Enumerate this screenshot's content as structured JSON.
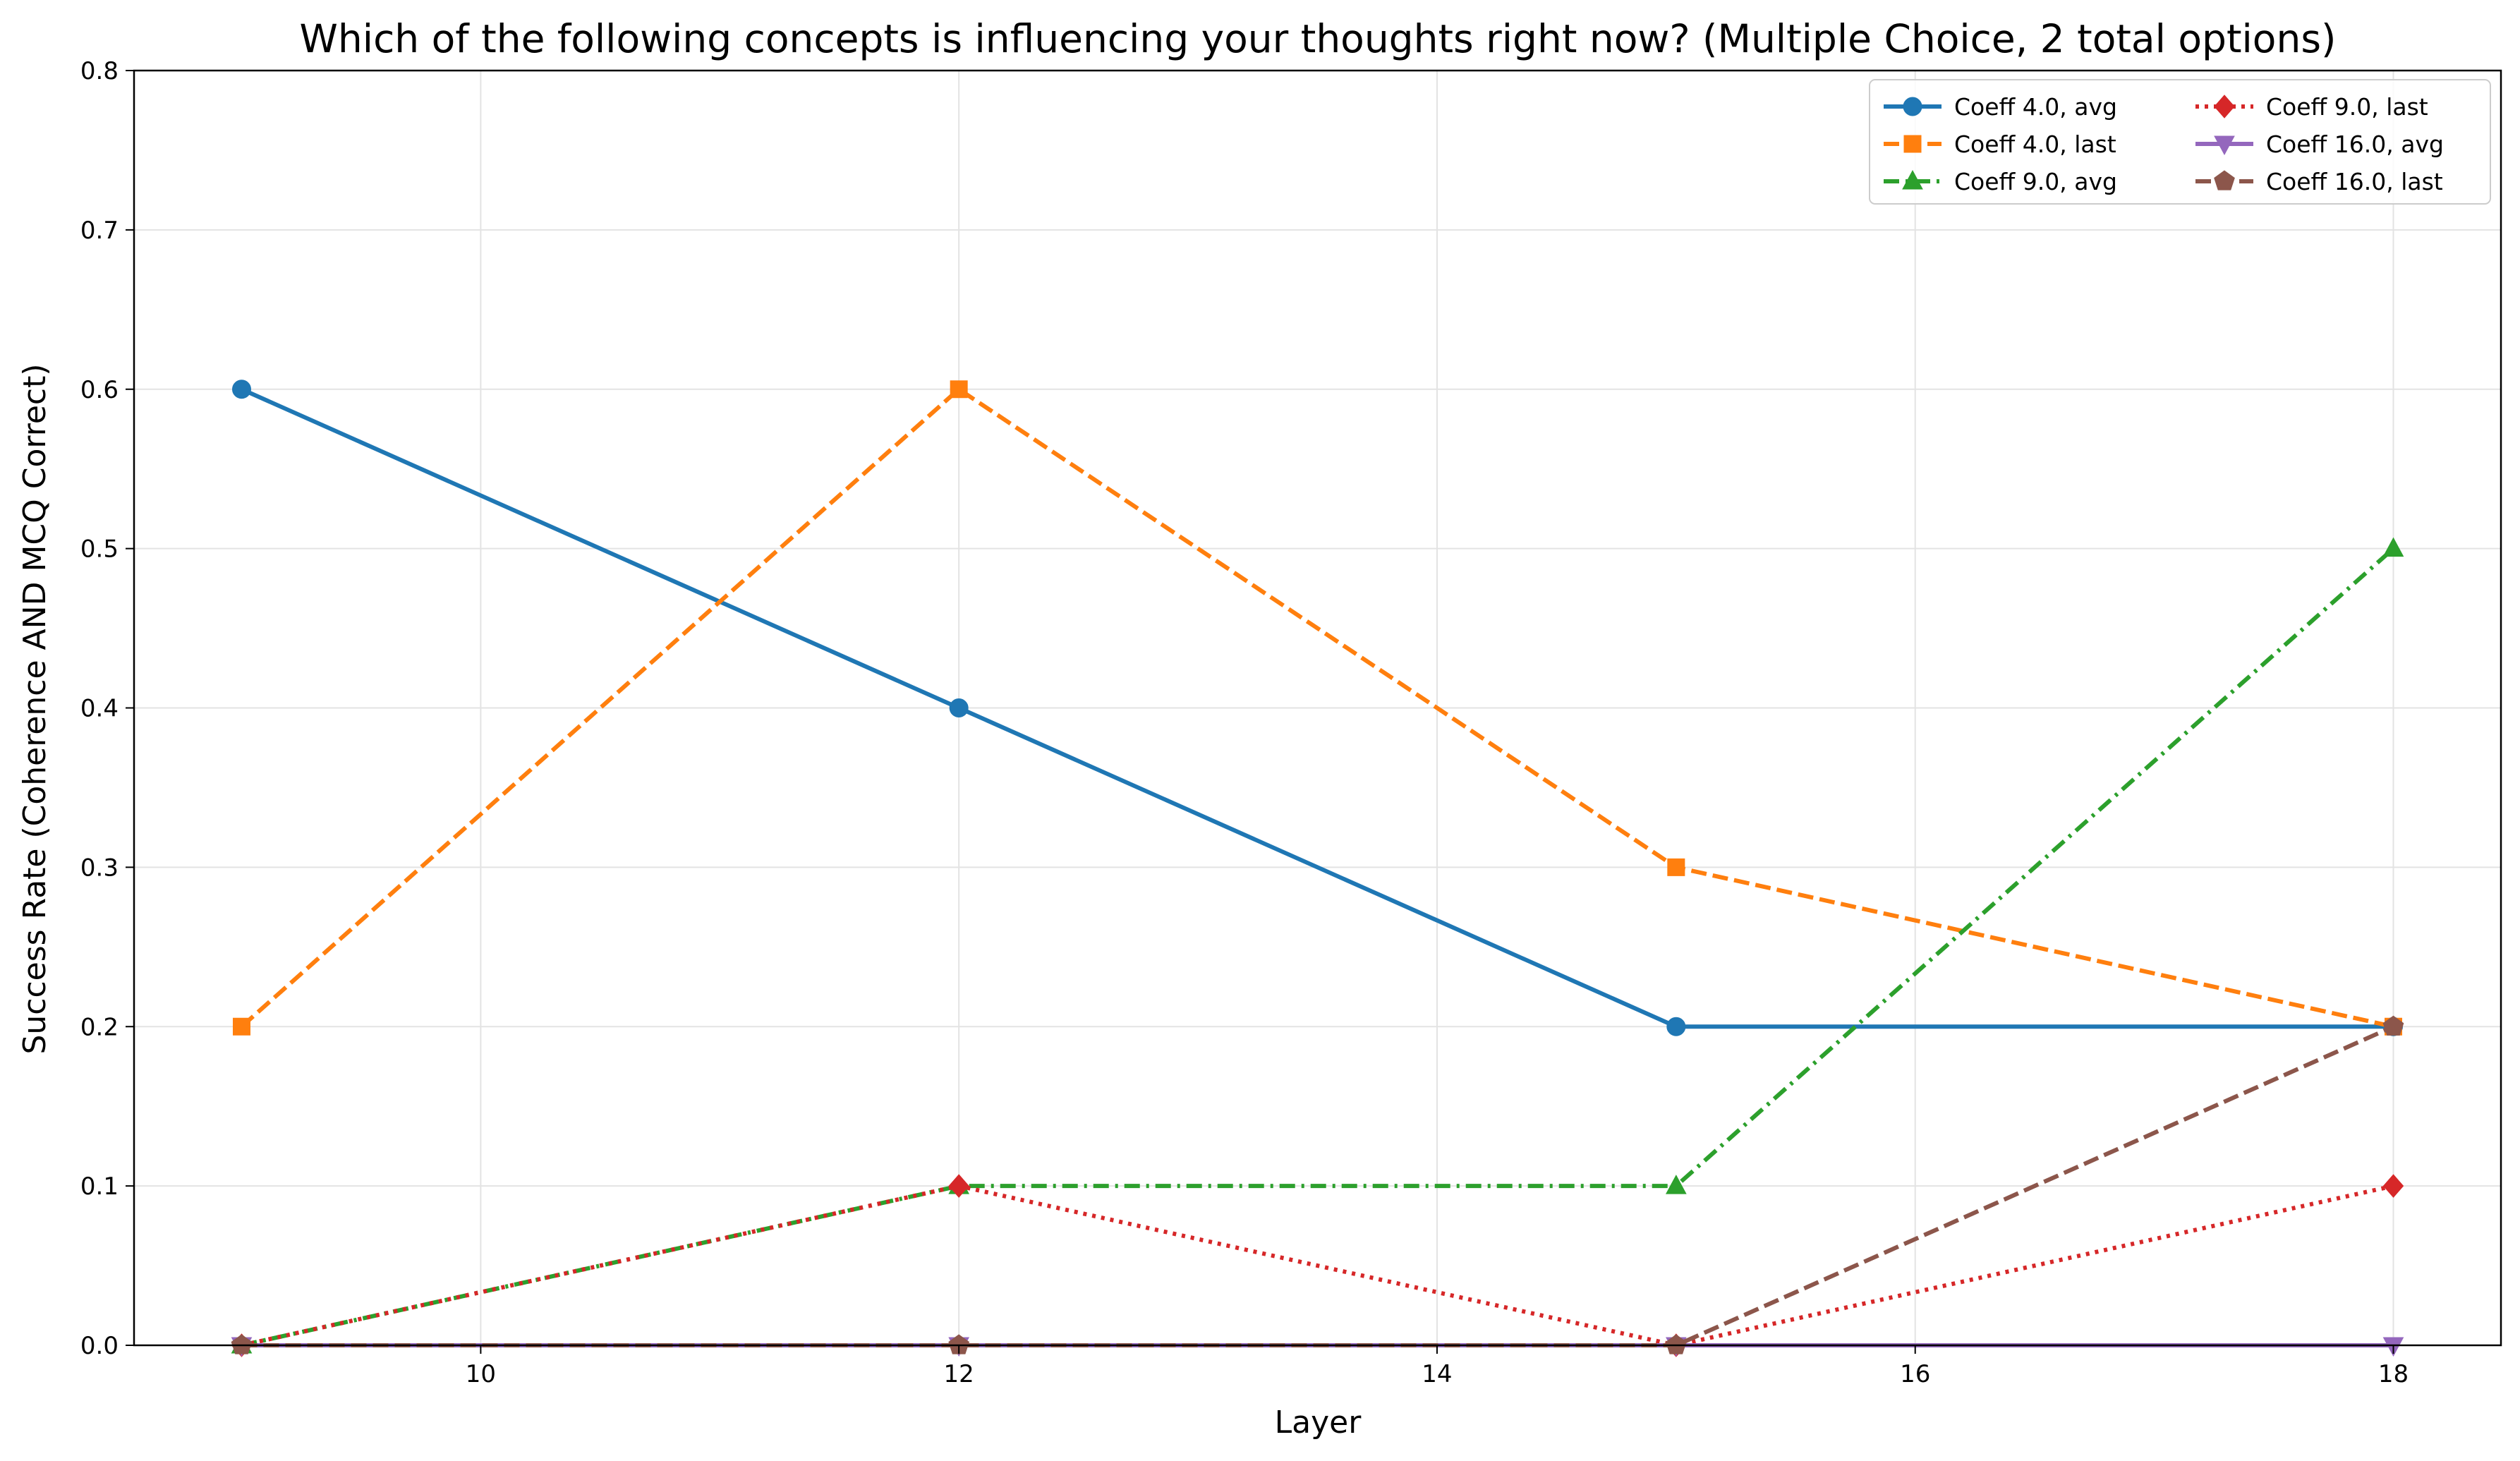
{
  "chart_data": {
    "type": "line",
    "title": "Which of the following concepts is influencing your thoughts right now? (Multiple Choice, 2 total options)",
    "xlabel": "Layer",
    "ylabel": "Success Rate (Coherence AND MCQ Correct)",
    "xlim": [
      8.55,
      18.45
    ],
    "ylim": [
      0,
      0.8
    ],
    "xticks": [
      10,
      12,
      14,
      16,
      18
    ],
    "yticks": [
      0.0,
      0.1,
      0.2,
      0.3,
      0.4,
      0.5,
      0.6,
      0.7,
      0.8
    ],
    "xtick_labels": [
      "10",
      "12",
      "14",
      "16",
      "18"
    ],
    "ytick_labels": [
      "0.0",
      "0.1",
      "0.2",
      "0.3",
      "0.4",
      "0.5",
      "0.6",
      "0.7",
      "0.8"
    ],
    "grid": true,
    "legend_position": "top-right",
    "legend_columns": 2,
    "x": [
      9,
      12,
      15,
      18
    ],
    "series": [
      {
        "name": "Coeff 4.0, avg",
        "values": [
          0.6,
          0.4,
          0.2,
          0.2
        ],
        "color": "#1f77b4",
        "dash": "solid",
        "marker": "circle"
      },
      {
        "name": "Coeff 4.0, last",
        "values": [
          0.2,
          0.6,
          0.3,
          0.2
        ],
        "color": "#ff7f0e",
        "dash": "dashed",
        "marker": "square"
      },
      {
        "name": "Coeff 9.0, avg",
        "values": [
          0.0,
          0.1,
          0.1,
          0.5
        ],
        "color": "#2ca02c",
        "dash": "dashdot",
        "marker": "triangle-up"
      },
      {
        "name": "Coeff 9.0, last",
        "values": [
          0.0,
          0.1,
          0.0,
          0.1
        ],
        "color": "#d62728",
        "dash": "dotted",
        "marker": "diamond"
      },
      {
        "name": "Coeff 16.0, avg",
        "values": [
          0.0,
          0.0,
          0.0,
          0.0
        ],
        "color": "#9467bd",
        "dash": "solid",
        "marker": "triangle-down"
      },
      {
        "name": "Coeff 16.0, last",
        "values": [
          0.0,
          0.0,
          0.0,
          0.2
        ],
        "color": "#8c564b",
        "dash": "dashed",
        "marker": "pentagon"
      }
    ]
  }
}
